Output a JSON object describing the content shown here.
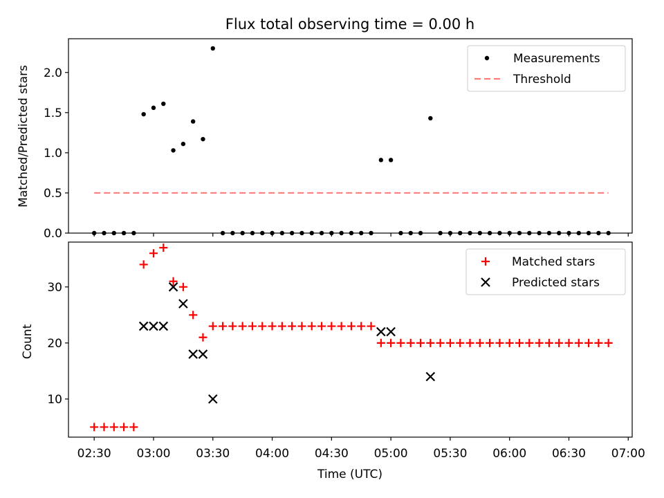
{
  "chart_data": [
    {
      "type": "scatter",
      "title": "Flux total observing time = 0.00 h",
      "xlabel": "",
      "ylabel": "Matched/Predicted stars",
      "xlim": [
        "02:17",
        "07:02"
      ],
      "ylim": [
        0,
        2.42
      ],
      "yticks": [
        0.0,
        0.5,
        1.0,
        1.5,
        2.0
      ],
      "ytick_labels": [
        "0.0",
        "0.5",
        "1.0",
        "1.5",
        "2.0"
      ],
      "xticks": [
        "02:30",
        "03:00",
        "03:30",
        "04:00",
        "04:30",
        "05:00",
        "05:30",
        "06:00",
        "06:30",
        "07:00"
      ],
      "grid": false,
      "legend_position": "top-right",
      "series": [
        {
          "name": "Measurements",
          "kind": "scatter",
          "marker": "dot",
          "color": "#000000",
          "points": [
            [
              "02:30",
              0
            ],
            [
              "02:35",
              0
            ],
            [
              "02:40",
              0
            ],
            [
              "02:45",
              0
            ],
            [
              "02:50",
              0
            ],
            [
              "02:55",
              1.48
            ],
            [
              "03:00",
              1.56
            ],
            [
              "03:05",
              1.61
            ],
            [
              "03:10",
              1.03
            ],
            [
              "03:15",
              1.11
            ],
            [
              "03:20",
              1.39
            ],
            [
              "03:25",
              1.17
            ],
            [
              "03:30",
              2.3
            ],
            [
              "03:35",
              0
            ],
            [
              "03:40",
              0
            ],
            [
              "03:45",
              0
            ],
            [
              "03:50",
              0
            ],
            [
              "03:55",
              0
            ],
            [
              "04:00",
              0
            ],
            [
              "04:05",
              0
            ],
            [
              "04:10",
              0
            ],
            [
              "04:15",
              0
            ],
            [
              "04:20",
              0
            ],
            [
              "04:25",
              0
            ],
            [
              "04:30",
              0
            ],
            [
              "04:35",
              0
            ],
            [
              "04:40",
              0
            ],
            [
              "04:45",
              0
            ],
            [
              "04:50",
              0
            ],
            [
              "04:55",
              0.91
            ],
            [
              "05:00",
              0.91
            ],
            [
              "05:05",
              0
            ],
            [
              "05:10",
              0
            ],
            [
              "05:15",
              0
            ],
            [
              "05:20",
              1.43
            ],
            [
              "05:25",
              0
            ],
            [
              "05:30",
              0
            ],
            [
              "05:35",
              0
            ],
            [
              "05:40",
              0
            ],
            [
              "05:45",
              0
            ],
            [
              "05:50",
              0
            ],
            [
              "05:55",
              0
            ],
            [
              "06:00",
              0
            ],
            [
              "06:05",
              0
            ],
            [
              "06:10",
              0
            ],
            [
              "06:15",
              0
            ],
            [
              "06:20",
              0
            ],
            [
              "06:25",
              0
            ],
            [
              "06:30",
              0
            ],
            [
              "06:35",
              0
            ],
            [
              "06:40",
              0
            ],
            [
              "06:45",
              0
            ],
            [
              "06:50",
              0
            ]
          ]
        },
        {
          "name": "Threshold",
          "kind": "line",
          "dash": true,
          "color": "#ff7f7f",
          "points": [
            [
              "02:30",
              0.5
            ],
            [
              "06:50",
              0.5
            ]
          ]
        }
      ]
    },
    {
      "type": "scatter",
      "title": "",
      "xlabel": "Time (UTC)",
      "ylabel": "Count",
      "xlim": [
        "02:17",
        "07:02"
      ],
      "ylim": [
        3.2,
        38.0
      ],
      "yticks": [
        10,
        20,
        30
      ],
      "ytick_labels": [
        "10",
        "20",
        "30"
      ],
      "xticks": [
        "02:30",
        "03:00",
        "03:30",
        "04:00",
        "04:30",
        "05:00",
        "05:30",
        "06:00",
        "06:30",
        "07:00"
      ],
      "grid": false,
      "legend_position": "top-right",
      "series": [
        {
          "name": "Matched stars",
          "kind": "scatter",
          "marker": "plus",
          "color": "#ff0000",
          "points": [
            [
              "02:30",
              5
            ],
            [
              "02:35",
              5
            ],
            [
              "02:40",
              5
            ],
            [
              "02:45",
              5
            ],
            [
              "02:50",
              5
            ],
            [
              "02:55",
              34
            ],
            [
              "03:00",
              36
            ],
            [
              "03:05",
              37
            ],
            [
              "03:10",
              31
            ],
            [
              "03:15",
              30
            ],
            [
              "03:20",
              25
            ],
            [
              "03:25",
              21
            ],
            [
              "03:30",
              23
            ],
            [
              "03:35",
              23
            ],
            [
              "03:40",
              23
            ],
            [
              "03:45",
              23
            ],
            [
              "03:50",
              23
            ],
            [
              "03:55",
              23
            ],
            [
              "04:00",
              23
            ],
            [
              "04:05",
              23
            ],
            [
              "04:10",
              23
            ],
            [
              "04:15",
              23
            ],
            [
              "04:20",
              23
            ],
            [
              "04:25",
              23
            ],
            [
              "04:30",
              23
            ],
            [
              "04:35",
              23
            ],
            [
              "04:40",
              23
            ],
            [
              "04:45",
              23
            ],
            [
              "04:50",
              23
            ],
            [
              "04:55",
              20
            ],
            [
              "05:00",
              20
            ],
            [
              "05:05",
              20
            ],
            [
              "05:10",
              20
            ],
            [
              "05:15",
              20
            ],
            [
              "05:20",
              20
            ],
            [
              "05:25",
              20
            ],
            [
              "05:30",
              20
            ],
            [
              "05:35",
              20
            ],
            [
              "05:40",
              20
            ],
            [
              "05:45",
              20
            ],
            [
              "05:50",
              20
            ],
            [
              "05:55",
              20
            ],
            [
              "06:00",
              20
            ],
            [
              "06:05",
              20
            ],
            [
              "06:10",
              20
            ],
            [
              "06:15",
              20
            ],
            [
              "06:20",
              20
            ],
            [
              "06:25",
              20
            ],
            [
              "06:30",
              20
            ],
            [
              "06:35",
              20
            ],
            [
              "06:40",
              20
            ],
            [
              "06:45",
              20
            ],
            [
              "06:50",
              20
            ]
          ]
        },
        {
          "name": "Predicted stars",
          "kind": "scatter",
          "marker": "x",
          "color": "#000000",
          "points": [
            [
              "02:55",
              23
            ],
            [
              "03:00",
              23
            ],
            [
              "03:05",
              23
            ],
            [
              "03:10",
              30
            ],
            [
              "03:15",
              27
            ],
            [
              "03:20",
              18
            ],
            [
              "03:25",
              18
            ],
            [
              "03:30",
              10
            ],
            [
              "04:55",
              22
            ],
            [
              "05:00",
              22
            ],
            [
              "05:20",
              14
            ]
          ]
        }
      ]
    }
  ]
}
